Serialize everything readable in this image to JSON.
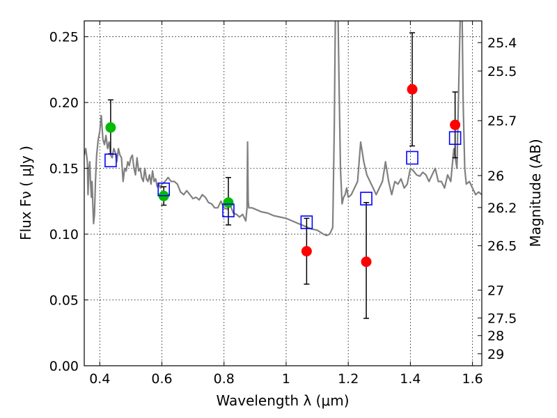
{
  "chart_data": {
    "type": "scatter",
    "title": "",
    "xlabel": "Wavelength  λ (μm)",
    "ylabel": "Flux  Fν  ( μJy )",
    "ylabel_right": "Magnitude (AB)",
    "xlim": [
      0.35,
      1.63
    ],
    "ylim": [
      0.0,
      0.262
    ],
    "grid": true,
    "x_ticks": [
      0.4,
      0.6,
      0.8,
      1.0,
      1.2,
      1.4,
      1.6
    ],
    "x_tick_labels": [
      "0.4",
      "0.6",
      "0.8",
      "1",
      "1.2",
      "1.4",
      "1.6"
    ],
    "y_ticks": [
      0.0,
      0.05,
      0.1,
      0.15,
      0.2,
      0.25
    ],
    "y_tick_labels": [
      "0.00",
      "0.05",
      "0.10",
      "0.15",
      "0.20",
      "0.25"
    ],
    "right_ticks": [
      {
        "flux": 0.2455,
        "label": "25.4"
      },
      {
        "flux": 0.2239,
        "label": "25.5"
      },
      {
        "flux": 0.1862,
        "label": "25.7"
      },
      {
        "flux": 0.1445,
        "label": "26"
      },
      {
        "flux": 0.1202,
        "label": "26.2"
      },
      {
        "flux": 0.0912,
        "label": "26.5"
      },
      {
        "flux": 0.0575,
        "label": "27"
      },
      {
        "flux": 0.0363,
        "label": "27.5"
      },
      {
        "flux": 0.0229,
        "label": "28"
      },
      {
        "flux": 0.0091,
        "label": "29"
      }
    ],
    "colors": {
      "model": "#808080",
      "green": "#00bb00",
      "red": "#ff0000",
      "square": "#0000ff",
      "errorbar": "#000000",
      "grid": "#000000"
    },
    "model_spectrum": {
      "name": "",
      "x": [
        0.35,
        0.355,
        0.36,
        0.362,
        0.365,
        0.368,
        0.37,
        0.373,
        0.375,
        0.378,
        0.38,
        0.383,
        0.386,
        0.39,
        0.395,
        0.4,
        0.405,
        0.41,
        0.415,
        0.42,
        0.425,
        0.43,
        0.435,
        0.44,
        0.445,
        0.45,
        0.455,
        0.46,
        0.465,
        0.47,
        0.475,
        0.48,
        0.485,
        0.49,
        0.495,
        0.5,
        0.505,
        0.51,
        0.515,
        0.52,
        0.525,
        0.53,
        0.535,
        0.54,
        0.545,
        0.55,
        0.555,
        0.56,
        0.565,
        0.57,
        0.575,
        0.58,
        0.585,
        0.59,
        0.595,
        0.6,
        0.61,
        0.62,
        0.63,
        0.64,
        0.65,
        0.66,
        0.67,
        0.68,
        0.69,
        0.7,
        0.71,
        0.72,
        0.73,
        0.74,
        0.75,
        0.76,
        0.77,
        0.78,
        0.79,
        0.8,
        0.81,
        0.82,
        0.83,
        0.84,
        0.85,
        0.86,
        0.87,
        0.874,
        0.876,
        0.878,
        0.88,
        0.885,
        0.89,
        0.9,
        0.92,
        0.94,
        0.96,
        0.98,
        1.0,
        1.02,
        1.04,
        1.06,
        1.08,
        1.1,
        1.12,
        1.13,
        1.14,
        1.15,
        1.155,
        1.16,
        1.165,
        1.17,
        1.175,
        1.18,
        1.185,
        1.19,
        1.195,
        1.2,
        1.21,
        1.22,
        1.23,
        1.24,
        1.25,
        1.26,
        1.27,
        1.28,
        1.29,
        1.3,
        1.31,
        1.32,
        1.33,
        1.34,
        1.35,
        1.36,
        1.37,
        1.38,
        1.39,
        1.4,
        1.41,
        1.42,
        1.43,
        1.44,
        1.45,
        1.46,
        1.47,
        1.48,
        1.49,
        1.5,
        1.51,
        1.52,
        1.53,
        1.54,
        1.55,
        1.56,
        1.565,
        1.57,
        1.575,
        1.58,
        1.59,
        1.6,
        1.61,
        1.62,
        1.63
      ],
      "y": [
        0.16,
        0.165,
        0.155,
        0.13,
        0.15,
        0.155,
        0.14,
        0.128,
        0.14,
        0.12,
        0.108,
        0.115,
        0.14,
        0.16,
        0.172,
        0.178,
        0.19,
        0.172,
        0.168,
        0.175,
        0.165,
        0.17,
        0.16,
        0.158,
        0.165,
        0.162,
        0.155,
        0.165,
        0.16,
        0.158,
        0.14,
        0.15,
        0.148,
        0.155,
        0.152,
        0.158,
        0.16,
        0.15,
        0.145,
        0.158,
        0.148,
        0.15,
        0.143,
        0.14,
        0.15,
        0.142,
        0.14,
        0.145,
        0.138,
        0.148,
        0.14,
        0.142,
        0.136,
        0.138,
        0.135,
        0.138,
        0.14,
        0.143,
        0.14,
        0.14,
        0.138,
        0.132,
        0.13,
        0.133,
        0.13,
        0.127,
        0.128,
        0.126,
        0.13,
        0.128,
        0.124,
        0.123,
        0.12,
        0.12,
        0.125,
        0.12,
        0.119,
        0.122,
        0.116,
        0.115,
        0.113,
        0.115,
        0.11,
        0.12,
        0.17,
        0.125,
        0.12,
        0.12,
        0.12,
        0.119,
        0.117,
        0.116,
        0.114,
        0.113,
        0.112,
        0.11,
        0.108,
        0.106,
        0.104,
        0.103,
        0.1,
        0.099,
        0.1,
        0.105,
        0.18,
        0.3,
        0.3,
        0.22,
        0.15,
        0.123,
        0.128,
        0.13,
        0.135,
        0.128,
        0.13,
        0.135,
        0.14,
        0.17,
        0.155,
        0.145,
        0.14,
        0.135,
        0.13,
        0.135,
        0.14,
        0.155,
        0.14,
        0.13,
        0.14,
        0.138,
        0.142,
        0.135,
        0.138,
        0.15,
        0.148,
        0.145,
        0.144,
        0.147,
        0.145,
        0.14,
        0.145,
        0.15,
        0.14,
        0.14,
        0.135,
        0.145,
        0.14,
        0.165,
        0.15,
        0.26,
        0.3,
        0.2,
        0.15,
        0.138,
        0.14,
        0.135,
        0.13,
        0.132,
        0.13
      ]
    },
    "series": [
      {
        "name": "",
        "marker": "circle",
        "color": "green",
        "points": [
          {
            "x": 0.435,
            "y": 0.181,
            "err_lo": 0.161,
            "err_hi": 0.202
          },
          {
            "x": 0.606,
            "y": 0.129,
            "err_lo": 0.122,
            "err_hi": 0.136
          },
          {
            "x": 0.814,
            "y": 0.124,
            "err_lo": 0.107,
            "err_hi": 0.143
          }
        ]
      },
      {
        "name": "",
        "marker": "circle",
        "color": "red",
        "points": [
          {
            "x": 1.066,
            "y": 0.087,
            "err_lo": 0.062,
            "err_hi": 0.112
          },
          {
            "x": 1.258,
            "y": 0.079,
            "err_lo": 0.036,
            "err_hi": 0.124
          },
          {
            "x": 1.406,
            "y": 0.21,
            "err_lo": 0.167,
            "err_hi": 0.253
          },
          {
            "x": 1.544,
            "y": 0.183,
            "err_lo": 0.158,
            "err_hi": 0.208
          }
        ]
      },
      {
        "name": "",
        "marker": "open-square",
        "color": "square",
        "points": [
          {
            "x": 0.435,
            "y": 0.156
          },
          {
            "x": 0.606,
            "y": 0.134
          },
          {
            "x": 0.814,
            "y": 0.118
          },
          {
            "x": 1.066,
            "y": 0.109
          },
          {
            "x": 1.258,
            "y": 0.127
          },
          {
            "x": 1.406,
            "y": 0.158
          },
          {
            "x": 1.544,
            "y": 0.173
          }
        ]
      }
    ]
  }
}
